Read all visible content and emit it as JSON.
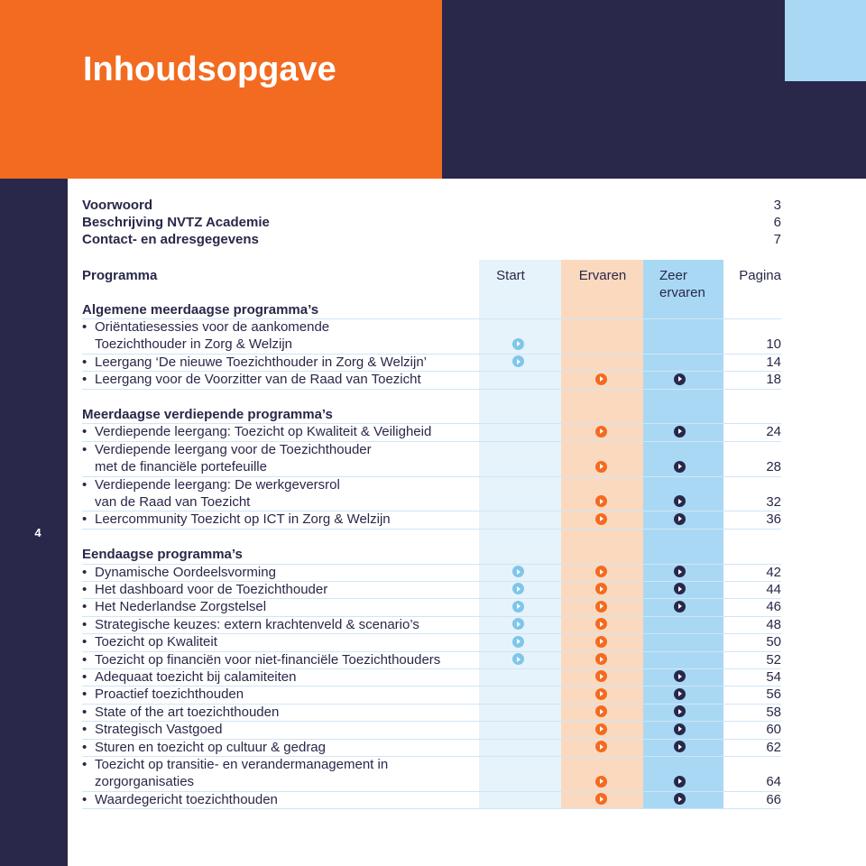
{
  "title": "Inhoudsopgave",
  "page_number": "4",
  "intro": [
    {
      "label": "Voorwoord",
      "page": 3
    },
    {
      "label": "Beschrijving NVTZ Academie",
      "page": 6
    },
    {
      "label": "Contact- en adresgegevens",
      "page": 7
    }
  ],
  "header": {
    "program": "Programma",
    "columns": [
      "Start",
      "Ervaren",
      "Zeer ervaren"
    ],
    "page": "Pagina"
  },
  "sections": [
    {
      "title": "Algemene meerdaagse programma’s",
      "items": [
        {
          "lines": [
            "Oriëntatiesessies voor de aankomende",
            "Toezichthouder in Zorg & Welzijn"
          ],
          "levels": [
            true,
            false,
            false
          ],
          "page": 10
        },
        {
          "lines": [
            "Leergang ‘De nieuwe Toezichthouder in Zorg & Welzijn’"
          ],
          "levels": [
            true,
            false,
            false
          ],
          "page": 14
        },
        {
          "lines": [
            "Leergang voor de Voorzitter van de Raad van Toezicht"
          ],
          "levels": [
            false,
            true,
            true
          ],
          "page": 18
        }
      ]
    },
    {
      "title": "Meerdaagse verdiepende programma’s",
      "items": [
        {
          "lines": [
            "Verdiepende leergang: Toezicht op Kwaliteit & Veiligheid"
          ],
          "levels": [
            false,
            true,
            true
          ],
          "page": 24
        },
        {
          "lines": [
            "Verdiepende leergang voor de Toezichthouder",
            "met de financiële portefeuille"
          ],
          "levels": [
            false,
            true,
            true
          ],
          "page": 28
        },
        {
          "lines": [
            "Verdiepende leergang: De werkgeversrol",
            "van de Raad van Toezicht"
          ],
          "levels": [
            false,
            true,
            true
          ],
          "page": 32
        },
        {
          "lines": [
            "Leercommunity Toezicht op ICT in Zorg & Welzijn"
          ],
          "levels": [
            false,
            true,
            true
          ],
          "page": 36
        }
      ]
    },
    {
      "title": "Eendaagse programma’s",
      "items": [
        {
          "lines": [
            "Dynamische Oordeelsvorming"
          ],
          "levels": [
            true,
            true,
            true
          ],
          "page": 42
        },
        {
          "lines": [
            "Het dashboard voor de Toezichthouder"
          ],
          "levels": [
            true,
            true,
            true
          ],
          "page": 44
        },
        {
          "lines": [
            "Het Nederlandse Zorgstelsel"
          ],
          "levels": [
            true,
            true,
            true
          ],
          "page": 46
        },
        {
          "lines": [
            "Strategische keuzes: extern krachtenveld & scenario’s"
          ],
          "levels": [
            true,
            true,
            false
          ],
          "page": 48
        },
        {
          "lines": [
            "Toezicht op Kwaliteit"
          ],
          "levels": [
            true,
            true,
            false
          ],
          "page": 50
        },
        {
          "lines": [
            "Toezicht op financiën voor niet-financiële Toezichthouders"
          ],
          "levels": [
            true,
            true,
            false
          ],
          "page": 52
        },
        {
          "lines": [
            "Adequaat toezicht bij calamiteiten"
          ],
          "levels": [
            false,
            true,
            true
          ],
          "page": 54
        },
        {
          "lines": [
            "Proactief toezichthouden"
          ],
          "levels": [
            false,
            true,
            true
          ],
          "page": 56
        },
        {
          "lines": [
            "State of the art toezichthouden"
          ],
          "levels": [
            false,
            true,
            true
          ],
          "page": 58
        },
        {
          "lines": [
            "Strategisch Vastgoed"
          ],
          "levels": [
            false,
            true,
            true
          ],
          "page": 60
        },
        {
          "lines": [
            "Sturen en toezicht op cultuur & gedrag"
          ],
          "levels": [
            false,
            true,
            true
          ],
          "page": 62
        },
        {
          "lines": [
            "Toezicht op transitie- en verandermanagement in",
            "zorgorganisaties"
          ],
          "levels": [
            false,
            true,
            true
          ],
          "page": 64
        },
        {
          "lines": [
            "Waardegericht toezichthouden"
          ],
          "levels": [
            false,
            true,
            true
          ],
          "page": 66
        }
      ]
    }
  ]
}
